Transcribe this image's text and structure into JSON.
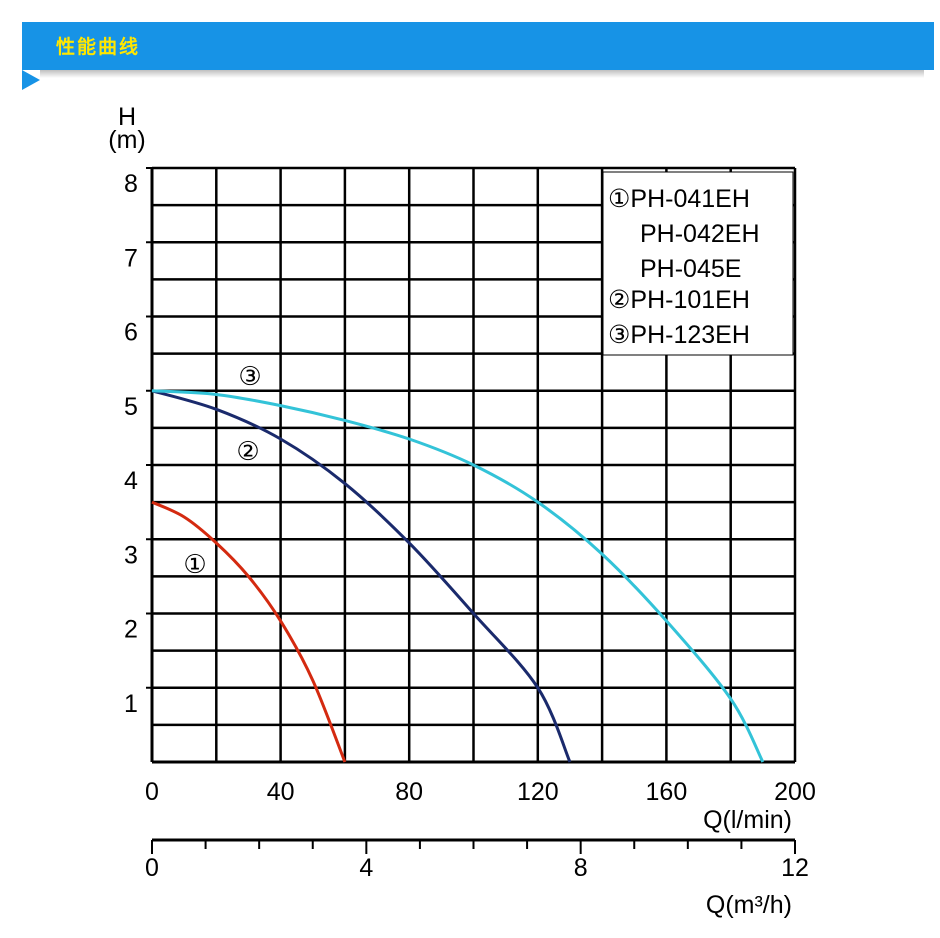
{
  "header": {
    "title": "性能曲线"
  },
  "chart_data": {
    "type": "line",
    "ylabel_line1": "H",
    "ylabel_line2": "(m)",
    "xlabel": "Q(l/min)",
    "xlabel2": "Q(m³/h)",
    "xlim": [
      0,
      200
    ],
    "ylim": [
      0,
      8
    ],
    "x2lim": [
      0,
      12
    ],
    "x_ticks": [
      "0",
      "40",
      "80",
      "120",
      "160",
      "200"
    ],
    "x_tick_values": [
      0,
      40,
      80,
      120,
      160,
      200
    ],
    "y_ticks": [
      "1",
      "2",
      "3",
      "4",
      "5",
      "6",
      "7",
      "8"
    ],
    "y_tick_values": [
      1,
      2,
      3,
      4,
      5,
      6,
      7,
      8
    ],
    "x2_ticks": [
      "0",
      "4",
      "8",
      "12"
    ],
    "x2_tick_values": [
      0,
      4,
      8,
      12
    ],
    "grid": true,
    "legend_position": "top-right",
    "legend": [
      "①PH-041EH",
      "PH-042EH",
      "PH-045E",
      "②PH-101EH",
      "③PH-123EH"
    ],
    "series": [
      {
        "marker": "①",
        "color": "#d42a10",
        "x": [
          0,
          10,
          20,
          30,
          40,
          50,
          60
        ],
        "y": [
          3.5,
          3.3,
          2.95,
          2.5,
          1.9,
          1.1,
          0
        ]
      },
      {
        "marker": "②",
        "color": "#1a2a6c",
        "x": [
          0,
          20,
          40,
          60,
          80,
          100,
          120,
          130
        ],
        "y": [
          5.0,
          4.75,
          4.35,
          3.75,
          2.95,
          2.0,
          1.0,
          0
        ]
      },
      {
        "marker": "③",
        "color": "#33c3d8",
        "x": [
          0,
          20,
          40,
          60,
          80,
          100,
          120,
          140,
          160,
          180,
          190
        ],
        "y": [
          5.0,
          4.95,
          4.8,
          4.6,
          4.35,
          4.0,
          3.5,
          2.8,
          1.9,
          0.85,
          0
        ]
      }
    ]
  }
}
